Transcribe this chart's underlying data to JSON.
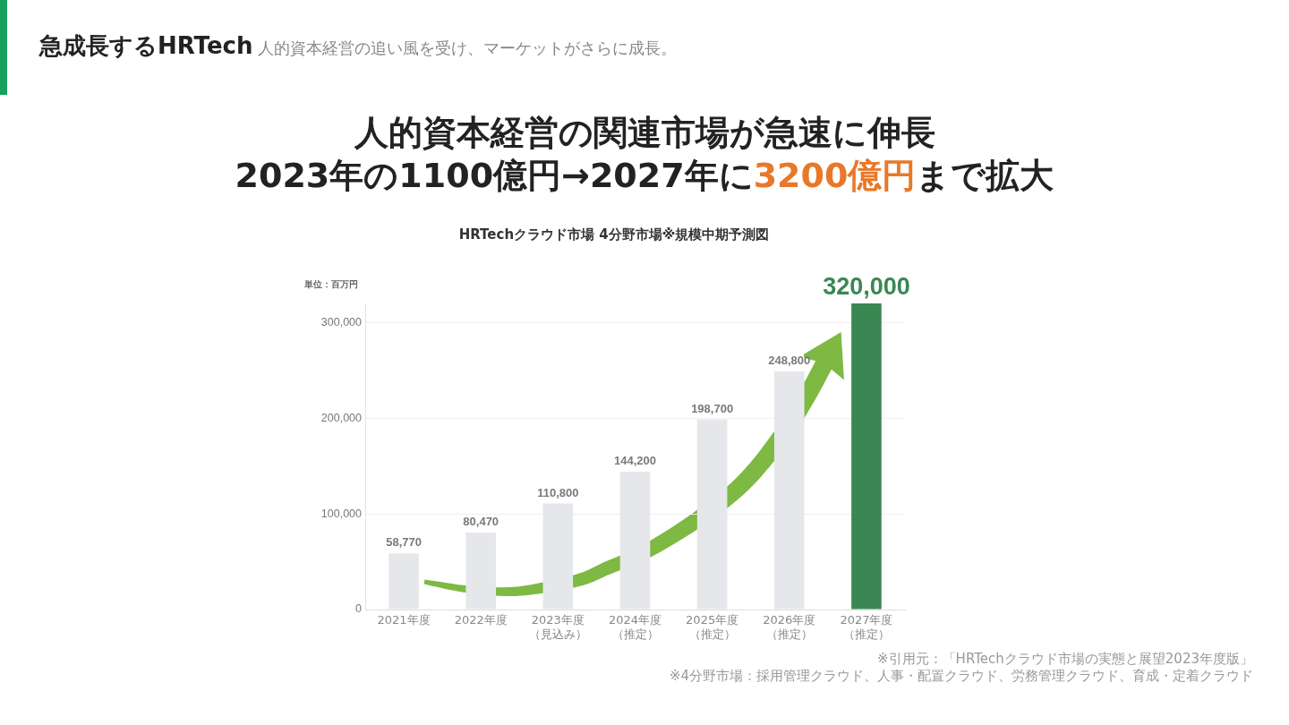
{
  "chart_data": {
    "type": "bar",
    "title": "HRTechクラウド市場 4分野市場※規模中期予測図",
    "ylabel": "単位：百万円",
    "categories": [
      "2021年度",
      "2022年度",
      "2023年度（見込み）",
      "2024年度（推定）",
      "2025年度（推定）",
      "2026年度（推定）",
      "2027年度（推定）"
    ],
    "values": [
      58770,
      80470,
      110800,
      144200,
      198700,
      248800,
      320000
    ],
    "colors": [
      "#e6e7ea",
      "#e6e7ea",
      "#e6e7ea",
      "#e6e7ea",
      "#e6e7ea",
      "#e6e7ea",
      "#3a8753"
    ],
    "value_labels": [
      "58,770",
      "80,470",
      "110,800",
      "144,200",
      "198,700",
      "248,800",
      "320,000"
    ],
    "ylim": [
      0,
      320000
    ],
    "yticks": [
      0,
      {
        "value": 100000,
        "label": "100,000"
      },
      {
        "value": 200000,
        "label": "200,000"
      },
      {
        "value": 300000,
        "label": "300,000"
      }
    ],
    "grid": "y",
    "annotations": [
      "急成長するHRTech",
      "人的資本経営の追い風を受け、マーケットがさらに成長。",
      "人的資本経営の関連市場が急速に伸長",
      "2023年の1100億円→2027年に",
      "3200億円",
      "まで拡大",
      "※引用元：「HRTechクラウド市場の実態と展望2023年度版」",
      "※4分野市場：採用管理クラウド、人事・配置クラウド、労務管理クラウド、育成・定着クラウド"
    ]
  }
}
